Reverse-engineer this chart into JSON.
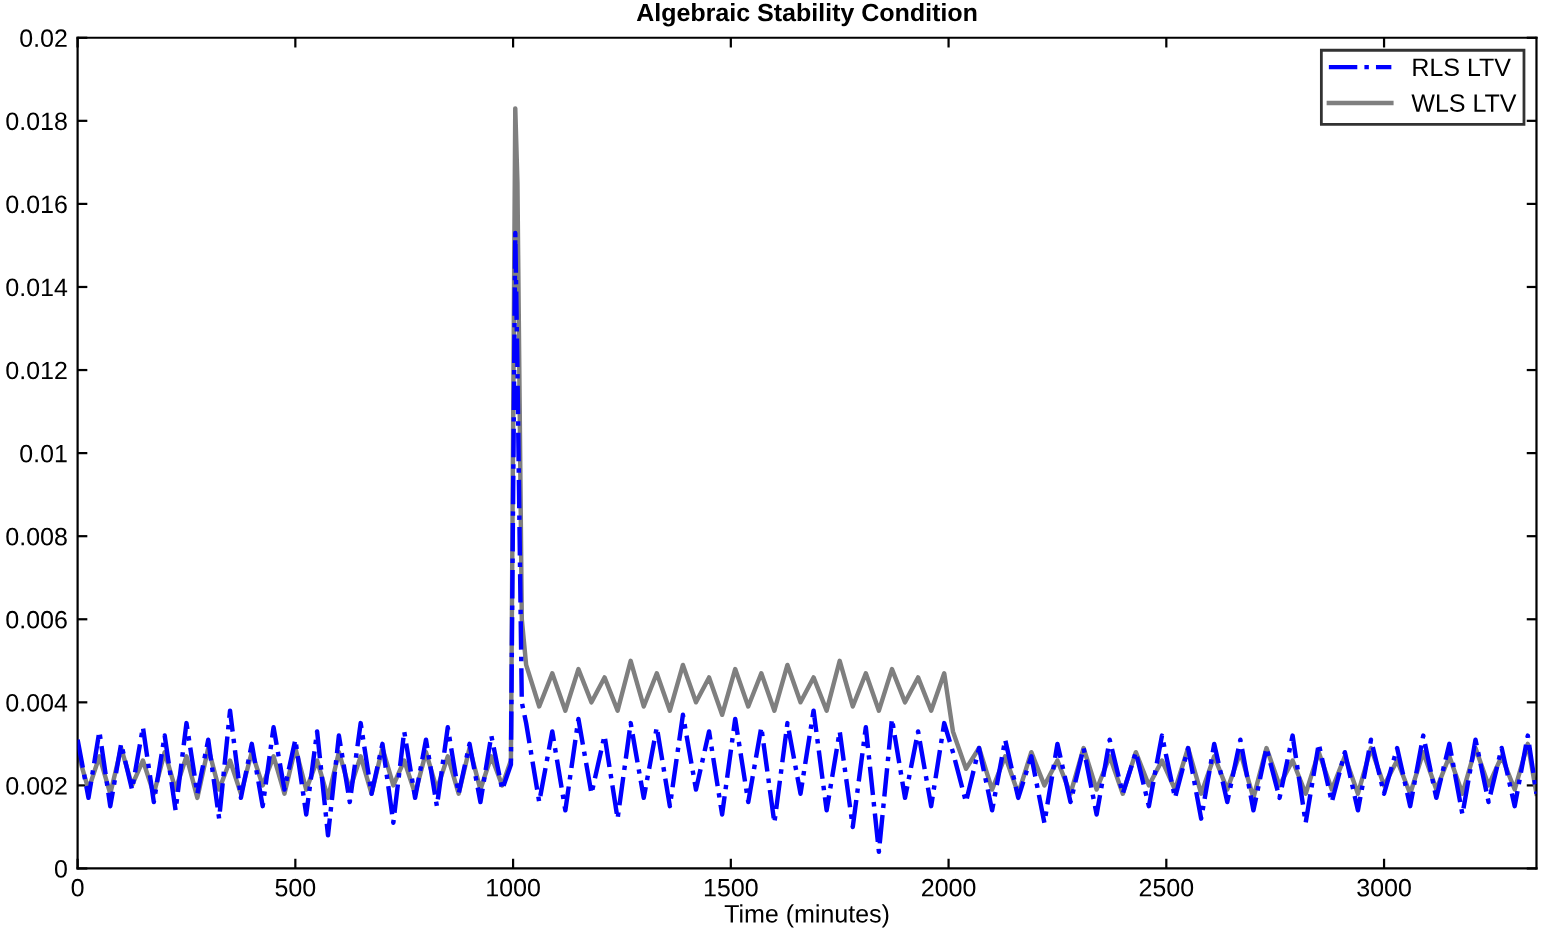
{
  "chart_data": {
    "type": "line",
    "title": "Algebraic Stability Condition",
    "xlabel": "Time (minutes)",
    "xlim": [
      0,
      3350
    ],
    "ylim": [
      0,
      0.02
    ],
    "xticks": [
      0,
      500,
      1000,
      1500,
      2000,
      2500,
      3000
    ],
    "yticks": [
      0,
      0.002,
      0.004,
      0.006,
      0.008,
      0.01,
      0.012,
      0.014,
      0.016,
      0.018,
      0.02
    ],
    "grid": false,
    "legend": "top right",
    "marker": "none",
    "series": [
      {
        "name": "RLS LTV",
        "color": "#0000ff",
        "line_style": "dashdot",
        "x": [
          0,
          25,
          50,
          75,
          100,
          125,
          150,
          175,
          200,
          225,
          250,
          275,
          300,
          325,
          350,
          375,
          400,
          425,
          450,
          475,
          500,
          525,
          550,
          575,
          600,
          625,
          650,
          675,
          700,
          725,
          750,
          775,
          800,
          825,
          850,
          875,
          900,
          925,
          950,
          975,
          995,
          1005,
          1010,
          1020,
          1030,
          1060,
          1090,
          1120,
          1150,
          1180,
          1210,
          1240,
          1270,
          1300,
          1330,
          1360,
          1390,
          1420,
          1450,
          1480,
          1510,
          1540,
          1570,
          1600,
          1630,
          1660,
          1690,
          1720,
          1750,
          1780,
          1810,
          1840,
          1870,
          1900,
          1930,
          1960,
          1990,
          2010,
          2040,
          2070,
          2100,
          2130,
          2160,
          2190,
          2220,
          2250,
          2280,
          2310,
          2340,
          2370,
          2400,
          2430,
          2460,
          2490,
          2520,
          2550,
          2580,
          2610,
          2640,
          2670,
          2700,
          2730,
          2760,
          2790,
          2820,
          2850,
          2880,
          2910,
          2940,
          2970,
          3000,
          3030,
          3060,
          3090,
          3120,
          3150,
          3180,
          3210,
          3240,
          3270,
          3300,
          3330,
          3350
        ],
        "values": [
          0.0031,
          0.0017,
          0.0033,
          0.0015,
          0.003,
          0.0019,
          0.0034,
          0.0016,
          0.0032,
          0.0014,
          0.0035,
          0.0018,
          0.0031,
          0.0012,
          0.0038,
          0.0017,
          0.003,
          0.0015,
          0.0034,
          0.0019,
          0.0031,
          0.0013,
          0.0033,
          0.0008,
          0.0032,
          0.0016,
          0.0035,
          0.0018,
          0.003,
          0.0011,
          0.0033,
          0.0017,
          0.0031,
          0.0015,
          0.0034,
          0.0018,
          0.003,
          0.0016,
          0.0032,
          0.0019,
          0.0025,
          0.0153,
          0.012,
          0.004,
          0.0035,
          0.0016,
          0.0033,
          0.0014,
          0.0036,
          0.0018,
          0.0032,
          0.0012,
          0.0035,
          0.0017,
          0.0034,
          0.0015,
          0.0037,
          0.0019,
          0.0033,
          0.0013,
          0.0036,
          0.0016,
          0.0034,
          0.0011,
          0.0035,
          0.0018,
          0.0038,
          0.0014,
          0.0033,
          0.001,
          0.0034,
          0.0004,
          0.0036,
          0.0017,
          0.0033,
          0.0015,
          0.0035,
          0.0028,
          0.0016,
          0.0029,
          0.0014,
          0.0031,
          0.0017,
          0.0027,
          0.0011,
          0.003,
          0.0016,
          0.0029,
          0.0013,
          0.0031,
          0.0018,
          0.0028,
          0.0015,
          0.0032,
          0.0017,
          0.0029,
          0.0012,
          0.003,
          0.0016,
          0.0031,
          0.0014,
          0.0029,
          0.0017,
          0.0032,
          0.0011,
          0.003,
          0.0016,
          0.0028,
          0.0014,
          0.0031,
          0.0018,
          0.0029,
          0.0015,
          0.0032,
          0.0017,
          0.003,
          0.0013,
          0.0031,
          0.0016,
          0.0029,
          0.0015,
          0.0032,
          0.0018
        ]
      },
      {
        "name": "WLS LTV",
        "color": "#7f7f7f",
        "line_style": "solid",
        "x": [
          0,
          25,
          50,
          75,
          100,
          125,
          150,
          175,
          200,
          225,
          250,
          275,
          300,
          325,
          350,
          375,
          400,
          425,
          450,
          475,
          500,
          525,
          550,
          575,
          600,
          625,
          650,
          675,
          700,
          725,
          750,
          775,
          800,
          825,
          850,
          875,
          900,
          925,
          950,
          975,
          995,
          1005,
          1010,
          1020,
          1030,
          1060,
          1090,
          1120,
          1150,
          1180,
          1210,
          1240,
          1270,
          1300,
          1330,
          1360,
          1390,
          1420,
          1450,
          1480,
          1510,
          1540,
          1570,
          1600,
          1630,
          1660,
          1690,
          1720,
          1750,
          1780,
          1810,
          1840,
          1870,
          1900,
          1930,
          1960,
          1990,
          2010,
          2040,
          2070,
          2100,
          2130,
          2160,
          2190,
          2220,
          2250,
          2280,
          2310,
          2340,
          2370,
          2400,
          2430,
          2460,
          2490,
          2520,
          2550,
          2580,
          2610,
          2640,
          2670,
          2700,
          2730,
          2760,
          2790,
          2820,
          2850,
          2880,
          2910,
          2940,
          2970,
          3000,
          3030,
          3060,
          3090,
          3120,
          3150,
          3180,
          3210,
          3240,
          3270,
          3300,
          3330,
          3350
        ],
        "values": [
          0.0028,
          0.0019,
          0.0027,
          0.0018,
          0.0029,
          0.002,
          0.0026,
          0.0018,
          0.0028,
          0.0019,
          0.0027,
          0.0017,
          0.0029,
          0.0019,
          0.0026,
          0.0018,
          0.0028,
          0.002,
          0.0027,
          0.0018,
          0.0029,
          0.0019,
          0.0026,
          0.0017,
          0.0028,
          0.0019,
          0.0027,
          0.0018,
          0.0029,
          0.002,
          0.0026,
          0.0018,
          0.0028,
          0.0019,
          0.0027,
          0.0018,
          0.0029,
          0.0019,
          0.0027,
          0.002,
          0.0026,
          0.0183,
          0.0165,
          0.006,
          0.0049,
          0.0039,
          0.0047,
          0.0038,
          0.0048,
          0.004,
          0.0046,
          0.0038,
          0.005,
          0.0039,
          0.0047,
          0.0038,
          0.0049,
          0.004,
          0.0046,
          0.0037,
          0.0048,
          0.0039,
          0.0047,
          0.0038,
          0.0049,
          0.004,
          0.0046,
          0.0038,
          0.005,
          0.0039,
          0.0047,
          0.0038,
          0.0048,
          0.004,
          0.0046,
          0.0038,
          0.0047,
          0.0033,
          0.0024,
          0.0029,
          0.0019,
          0.0027,
          0.0018,
          0.0028,
          0.002,
          0.0026,
          0.0018,
          0.0029,
          0.0019,
          0.0027,
          0.0018,
          0.0028,
          0.002,
          0.0026,
          0.0019,
          0.0029,
          0.0018,
          0.0027,
          0.0019,
          0.0028,
          0.0017,
          0.0029,
          0.002,
          0.0026,
          0.0018,
          0.0028,
          0.0019,
          0.0027,
          0.0018,
          0.0029,
          0.002,
          0.0026,
          0.0018,
          0.0028,
          0.0019,
          0.0027,
          0.0018,
          0.0029,
          0.002,
          0.0027,
          0.0019,
          0.003,
          0.0018
        ]
      }
    ]
  }
}
